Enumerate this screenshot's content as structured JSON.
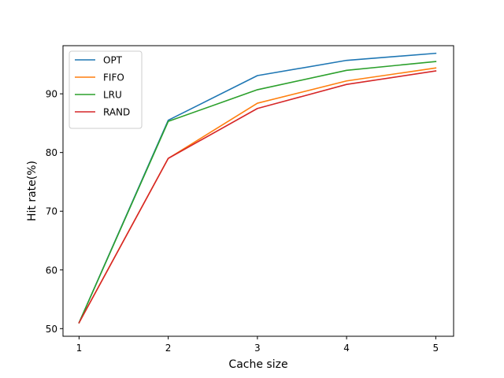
{
  "chart_data": {
    "type": "line",
    "title": "",
    "xlabel": "Cache size",
    "ylabel": "Hit rate(%)",
    "x": [
      1,
      2,
      3,
      4,
      5
    ],
    "xticks": [
      1,
      2,
      3,
      4,
      5
    ],
    "yticks": [
      50,
      60,
      70,
      80,
      90
    ],
    "xlim": [
      0.82,
      5.2
    ],
    "ylim": [
      48.7,
      98.2
    ],
    "grid": false,
    "legend": "top-left",
    "series": [
      {
        "name": "OPT",
        "color": "#1f77b4",
        "values": [
          51.0,
          85.5,
          93.1,
          95.7,
          96.9
        ]
      },
      {
        "name": "FIFO",
        "color": "#ff7f0e",
        "values": [
          51.0,
          79.0,
          88.4,
          92.2,
          94.4
        ]
      },
      {
        "name": "LRU",
        "color": "#2ca02c",
        "values": [
          51.0,
          85.3,
          90.7,
          94.0,
          95.5
        ]
      },
      {
        "name": "RAND",
        "color": "#d62728",
        "values": [
          51.0,
          79.0,
          87.5,
          91.6,
          93.9
        ]
      }
    ]
  }
}
